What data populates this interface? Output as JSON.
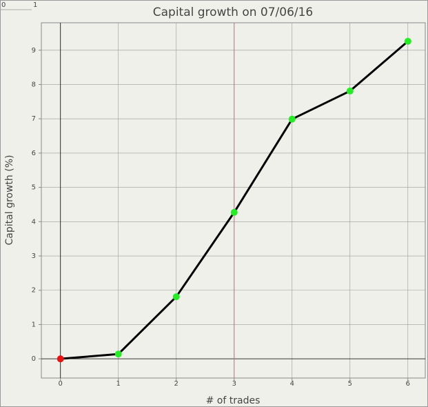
{
  "top_ruler_labels": [
    "0",
    "1"
  ],
  "chart_data": {
    "type": "line",
    "title": "Capital growth on 07/06/16",
    "x_label": "# of trades",
    "y_label": "Capital growth (%)",
    "x": [
      0,
      1,
      2,
      3,
      4,
      5,
      6
    ],
    "values": [
      0,
      0.14,
      1.81,
      4.27,
      6.99,
      7.81,
      9.26
    ],
    "color": "#000000",
    "marker_color": "#22ee22",
    "first_marker_color": "#ee1111",
    "marker_line": {
      "x": 3,
      "color": "#e06070"
    },
    "xlim": [
      -0.33,
      6.3
    ],
    "ylim": [
      -0.56,
      9.8
    ],
    "xticks": [
      0,
      1,
      2,
      3,
      4,
      5,
      6
    ],
    "yticks": [
      0,
      1,
      2,
      3,
      4,
      5,
      6,
      7,
      8,
      9
    ],
    "grid": true
  }
}
